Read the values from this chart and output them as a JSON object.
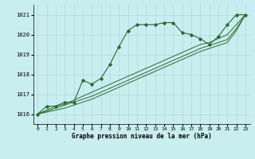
{
  "title": "Graphe pression niveau de la mer (hPa)",
  "bg_color": "#c8eef0",
  "grid_color": "#b0d8da",
  "line_color": "#2d6a2d",
  "xlim": [
    -0.5,
    23.5
  ],
  "ylim": [
    1015.5,
    1021.5
  ],
  "xticks": [
    0,
    1,
    2,
    3,
    4,
    5,
    6,
    7,
    8,
    9,
    10,
    11,
    12,
    13,
    14,
    15,
    16,
    17,
    18,
    19,
    20,
    21,
    22,
    23
  ],
  "yticks": [
    1016,
    1017,
    1018,
    1019,
    1020,
    1021
  ],
  "main_series": [
    1016.0,
    1016.4,
    1016.4,
    1016.6,
    1016.6,
    1017.7,
    1017.5,
    1017.8,
    1018.5,
    1019.4,
    1020.2,
    1020.5,
    1020.5,
    1020.5,
    1020.6,
    1020.6,
    1020.1,
    1020.0,
    1019.8,
    1019.5,
    1019.9,
    1020.5,
    1021.0,
    1021.0
  ],
  "ref_line1": [
    1016.0,
    1016.2,
    1016.4,
    1016.5,
    1016.7,
    1016.9,
    1017.1,
    1017.3,
    1017.5,
    1017.7,
    1017.9,
    1018.1,
    1018.3,
    1018.5,
    1018.7,
    1018.9,
    1019.1,
    1019.3,
    1019.5,
    1019.6,
    1019.8,
    1020.0,
    1020.5,
    1021.0
  ],
  "ref_line2": [
    1016.0,
    1016.15,
    1016.3,
    1016.45,
    1016.6,
    1016.75,
    1016.9,
    1017.1,
    1017.3,
    1017.5,
    1017.7,
    1017.9,
    1018.1,
    1018.3,
    1018.5,
    1018.7,
    1018.9,
    1019.1,
    1019.3,
    1019.45,
    1019.6,
    1019.75,
    1020.3,
    1021.0
  ],
  "ref_line3": [
    1016.0,
    1016.1,
    1016.2,
    1016.3,
    1016.45,
    1016.6,
    1016.75,
    1016.95,
    1017.15,
    1017.35,
    1017.55,
    1017.75,
    1017.95,
    1018.15,
    1018.35,
    1018.55,
    1018.75,
    1018.95,
    1019.15,
    1019.3,
    1019.45,
    1019.6,
    1020.2,
    1021.0
  ]
}
